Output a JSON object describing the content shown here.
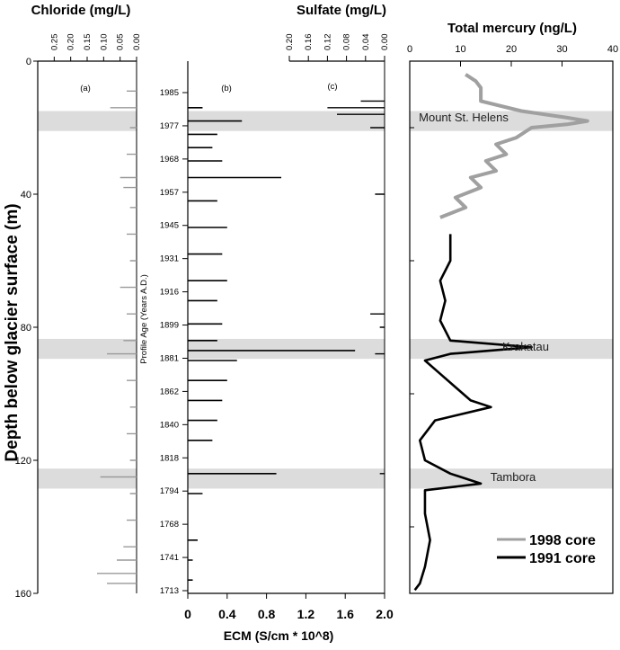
{
  "chart_data": [
    {
      "type": "line",
      "panel": "(a)",
      "title": "Chloride (mg/L)",
      "xlabel": "Chloride (mg/L)",
      "ylabel": "Depth below glacier surface (m)",
      "x_axis_reversed": true,
      "xlim": [
        0.3,
        0.0
      ],
      "ylim": [
        0,
        160
      ],
      "x_ticks": [
        "0.25",
        "0.20",
        "0.15",
        "0.10",
        "0.05",
        "0.00"
      ],
      "y_ticks": [
        "0",
        "40",
        "80",
        "120",
        "160"
      ],
      "series": [
        {
          "color": "#999999",
          "depth_m": [
            9,
            14,
            20,
            28,
            35,
            38,
            44,
            52,
            60,
            68,
            76,
            84,
            88,
            96,
            104,
            112,
            120,
            125,
            130,
            138,
            146,
            150,
            154,
            157
          ],
          "chloride_mg_L": [
            0.03,
            0.08,
            0.02,
            0.03,
            0.05,
            0.04,
            0.02,
            0.03,
            0.02,
            0.05,
            0.03,
            0.04,
            0.09,
            0.03,
            0.02,
            0.03,
            0.02,
            0.11,
            0.02,
            0.03,
            0.04,
            0.06,
            0.12,
            0.09
          ]
        }
      ]
    },
    {
      "type": "line",
      "panel": "(b)",
      "xlabel": "ECM (S/cm * 10^8)",
      "ylabel": "Profile Age (Years A.D.)",
      "xlim": [
        0,
        2.0
      ],
      "x_ticks": [
        "0",
        "0.4",
        "0.8",
        "1.2",
        "1.6",
        "2.0"
      ],
      "age_ticks": [
        "1985",
        "1977",
        "1968",
        "1957",
        "1945",
        "1931",
        "1916",
        "1899",
        "1881",
        "1862",
        "1840",
        "1818",
        "1794",
        "1768",
        "1741",
        "1713"
      ],
      "series": [
        {
          "color": "#000000",
          "depth_m": [
            14,
            18,
            22,
            26,
            30,
            35,
            42,
            50,
            58,
            66,
            72,
            79,
            84,
            87,
            90,
            96,
            102,
            108,
            114,
            124,
            130,
            144,
            150,
            156
          ],
          "ecm": [
            0.15,
            0.55,
            0.3,
            0.25,
            0.35,
            0.95,
            0.3,
            0.4,
            0.35,
            0.4,
            0.3,
            0.35,
            0.3,
            1.7,
            0.5,
            0.4,
            0.35,
            0.3,
            0.25,
            0.9,
            0.15,
            0.1,
            0.05,
            0.05
          ]
        }
      ]
    },
    {
      "type": "line",
      "panel": "(c)",
      "title": "Sulfate (mg/L)",
      "xlabel": "Sulfate (mg/L)",
      "x_axis_reversed": true,
      "xlim": [
        0.2,
        0.0
      ],
      "x_ticks": [
        "0.20",
        "0.16",
        "0.12",
        "0.08",
        "0.04",
        "0.00"
      ],
      "series": [
        {
          "color": "#000000",
          "depth_m": [
            12,
            14,
            16,
            20,
            40,
            76,
            80,
            88,
            124
          ],
          "sulfate_mg_L": [
            0.05,
            0.12,
            0.1,
            0.03,
            0.02,
            0.03,
            0.01,
            0.02,
            0.01
          ]
        }
      ]
    },
    {
      "type": "line",
      "panel": "Total mercury",
      "title": "Total mercury (ng/L)",
      "xlabel": "Total mercury (ng/L)",
      "xlim": [
        0,
        40
      ],
      "ylim": [
        0,
        160
      ],
      "x_ticks": [
        "0",
        "10",
        "20",
        "30",
        "40"
      ],
      "legend": "bottom-right",
      "series": [
        {
          "name": "1998 core",
          "color": "#a0a0a0",
          "depth_m": [
            4,
            6,
            8,
            12,
            15,
            17,
            18,
            19,
            20,
            23,
            25,
            28,
            30,
            33,
            35,
            38,
            41,
            44,
            47
          ],
          "hg_ng_L": [
            11,
            13,
            14,
            14,
            22,
            31,
            35,
            31,
            24,
            21,
            17,
            19,
            15,
            17,
            12,
            14,
            9,
            11,
            6
          ]
        },
        {
          "name": "1991 core",
          "color": "#000000",
          "depth_m": [
            52,
            60,
            66,
            72,
            78,
            84,
            86,
            88,
            90,
            94,
            98,
            102,
            104,
            108,
            114,
            120,
            124,
            127,
            129,
            136,
            144,
            152,
            157,
            159
          ],
          "hg_ng_L": [
            8,
            8,
            6,
            7,
            6,
            8,
            24,
            8,
            3,
            6,
            9,
            12,
            16,
            5,
            2,
            3,
            8,
            14,
            3,
            3,
            4,
            3,
            2,
            1
          ]
        }
      ]
    }
  ],
  "events": [
    {
      "label": "Mount St. Helens",
      "depth_range_m": [
        15,
        21
      ]
    },
    {
      "label": "Krakatau",
      "depth_range_m": [
        83.5,
        89.5
      ]
    },
    {
      "label": "Tambora",
      "depth_range_m": [
        122.5,
        128.5
      ]
    }
  ],
  "labels": {
    "chloride_title": "Chloride (mg/L)",
    "sulfate_title": "Sulfate (mg/L)",
    "mercury_title": "Total mercury (ng/L)",
    "ecm_label": "ECM (S/cm * 10^8)",
    "depth_label": "Depth below glacier surface (m)",
    "age_label": "Profile Age (Years A.D.)",
    "panel_a": "(a)",
    "panel_b": "(b)",
    "panel_c": "(c)",
    "event_helens": "Mount St. Helens",
    "event_krakatau": "Krakatau",
    "event_tambora": "Tambora",
    "legend_1998": "1998 core",
    "legend_1991": "1991 core"
  },
  "colors": {
    "band": "#dcdcdc",
    "chloride": "#999999",
    "ecm": "#000000",
    "sulfate": "#000000",
    "core_1998": "#a0a0a0",
    "core_1991": "#000000"
  }
}
